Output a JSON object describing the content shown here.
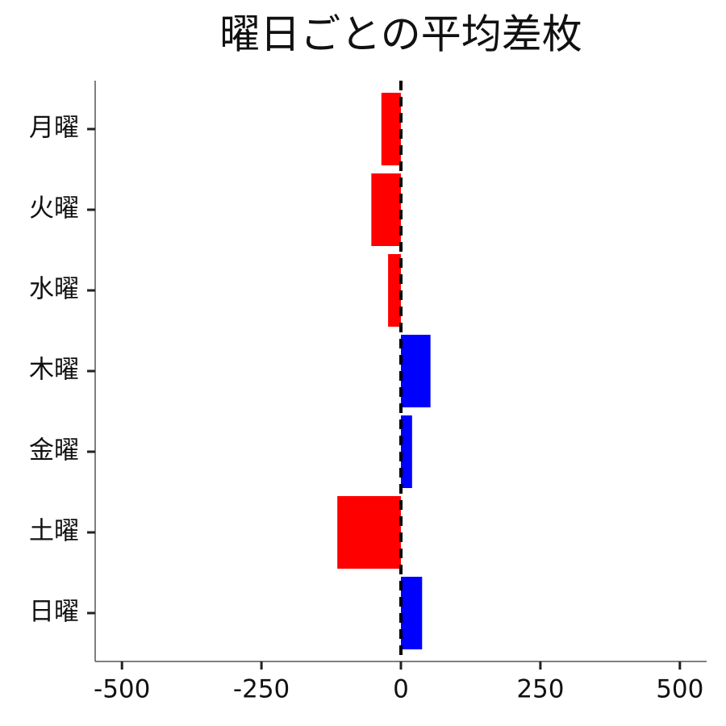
{
  "chart_data": {
    "type": "barh",
    "title": "曜日ごとの平均差枚",
    "categories": [
      "月曜",
      "火曜",
      "水曜",
      "木曜",
      "金曜",
      "土曜",
      "日曜"
    ],
    "values": [
      -35,
      -53,
      -23,
      53,
      20,
      -114,
      38
    ],
    "colors": [
      "#ff0000",
      "#ff0000",
      "#ff0000",
      "#0000ff",
      "#0000ff",
      "#ff0000",
      "#0000ff"
    ],
    "xlim": [
      -548,
      548
    ],
    "xticks": [
      -500,
      -250,
      0,
      250,
      500
    ],
    "reference_line": 0,
    "grid": false
  }
}
